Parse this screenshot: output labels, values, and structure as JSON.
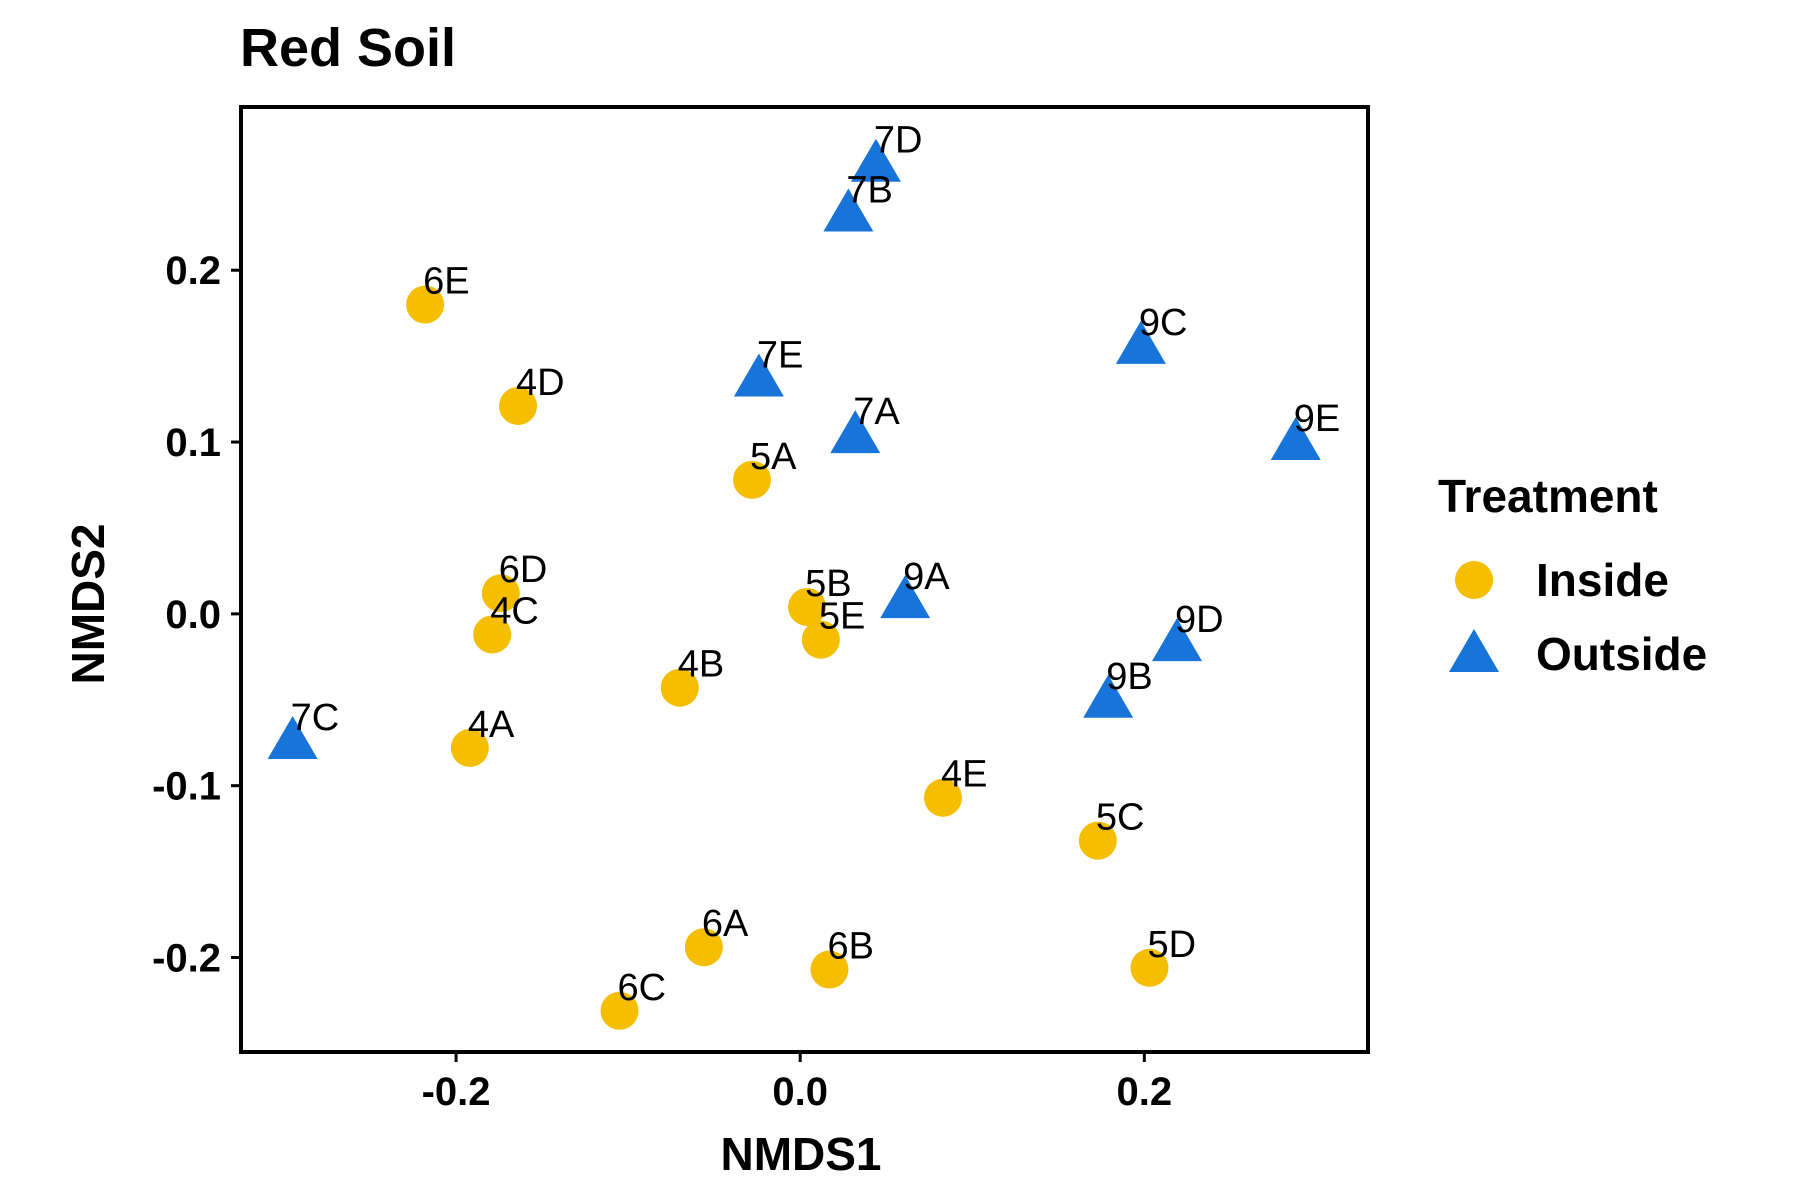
{
  "chart_data": {
    "type": "scatter",
    "title": "Red Soil",
    "xlabel": "NMDS1",
    "ylabel": "NMDS2",
    "xlim": [
      -0.325,
      0.33
    ],
    "ylim": [
      -0.255,
      0.295
    ],
    "xticks": [
      -0.2,
      0.0,
      0.2
    ],
    "xtick_labels": [
      "-0.2",
      "0.0",
      "0.2"
    ],
    "yticks": [
      -0.2,
      -0.1,
      0.0,
      0.1,
      0.2
    ],
    "ytick_labels": [
      "-0.2",
      "-0.1",
      "0.0",
      "0.1",
      "0.2"
    ],
    "grid": false,
    "legend": {
      "title": "Treatment",
      "position": "right"
    },
    "series": [
      {
        "name": "Inside",
        "shape": "circle",
        "color": "#F5BE00",
        "points": [
          {
            "label": "6E",
            "x": -0.218,
            "y": 0.18
          },
          {
            "label": "4D",
            "x": -0.164,
            "y": 0.121
          },
          {
            "label": "5A",
            "x": -0.028,
            "y": 0.078
          },
          {
            "label": "6D",
            "x": -0.174,
            "y": 0.012
          },
          {
            "label": "4C",
            "x": -0.179,
            "y": -0.012
          },
          {
            "label": "5B",
            "x": 0.004,
            "y": 0.004
          },
          {
            "label": "5E",
            "x": 0.012,
            "y": -0.015
          },
          {
            "label": "4B",
            "x": -0.07,
            "y": -0.043
          },
          {
            "label": "4A",
            "x": -0.192,
            "y": -0.078
          },
          {
            "label": "4E",
            "x": 0.083,
            "y": -0.107
          },
          {
            "label": "5C",
            "x": 0.173,
            "y": -0.132
          },
          {
            "label": "6A",
            "x": -0.056,
            "y": -0.194
          },
          {
            "label": "6B",
            "x": 0.017,
            "y": -0.207
          },
          {
            "label": "5D",
            "x": 0.203,
            "y": -0.206
          },
          {
            "label": "6C",
            "x": -0.105,
            "y": -0.231
          }
        ]
      },
      {
        "name": "Outside",
        "shape": "triangle",
        "color": "#1874D9",
        "points": [
          {
            "label": "7D",
            "x": 0.044,
            "y": 0.262
          },
          {
            "label": "7B",
            "x": 0.028,
            "y": 0.233
          },
          {
            "label": "9C",
            "x": 0.198,
            "y": 0.156
          },
          {
            "label": "7E",
            "x": -0.024,
            "y": 0.137
          },
          {
            "label": "7A",
            "x": 0.032,
            "y": 0.104
          },
          {
            "label": "9E",
            "x": 0.288,
            "y": 0.1
          },
          {
            "label": "9A",
            "x": 0.061,
            "y": 0.008
          },
          {
            "label": "9D",
            "x": 0.219,
            "y": -0.017
          },
          {
            "label": "9B",
            "x": 0.179,
            "y": -0.05
          },
          {
            "label": "7C",
            "x": -0.295,
            "y": -0.074
          }
        ]
      }
    ]
  }
}
